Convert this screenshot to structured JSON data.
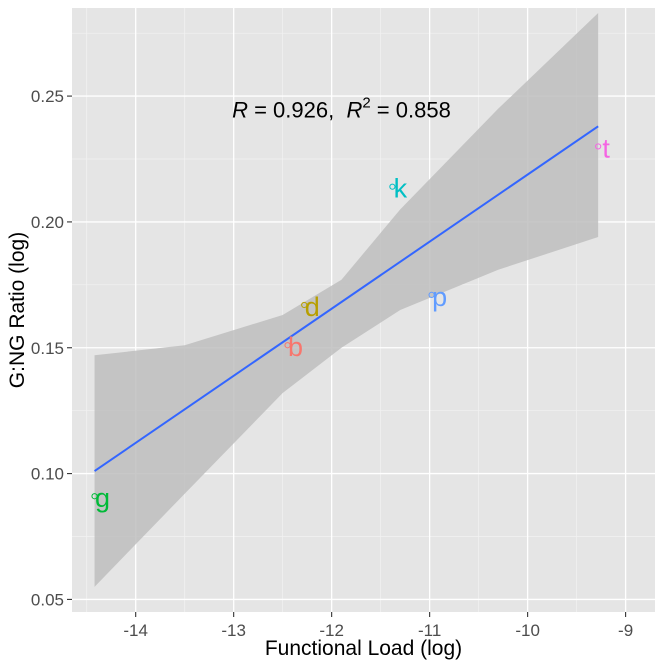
{
  "chart_data": {
    "type": "scatter",
    "xlabel": "Functional Load (log)",
    "ylabel": "G:NG Ratio (log)",
    "xlim": [
      -14.65,
      -8.7
    ],
    "ylim": [
      0.045,
      0.285
    ],
    "x_ticks": [
      -14,
      -13,
      -12,
      -11,
      -10,
      -9
    ],
    "y_ticks": [
      0.05,
      0.1,
      0.15,
      0.2,
      0.25
    ],
    "x_tick_labels": [
      "-14",
      "-13",
      "-12",
      "-11",
      "-10",
      "-9"
    ],
    "y_tick_labels": [
      "0.05",
      "0.10",
      "0.15",
      "0.20",
      "0.25"
    ],
    "grid": true,
    "annotation": {
      "r_symbol": "R",
      "r_equals": " = 0.926,  ",
      "r2_symbol": "R",
      "r2_superscript": "2",
      "r2_equals": " = 0.858",
      "x": -11.9,
      "y": 0.2415
    },
    "points": [
      {
        "label": "g",
        "x": -14.42,
        "y": 0.091,
        "color": "#00ba38"
      },
      {
        "label": "b",
        "x": -12.45,
        "y": 0.151,
        "color": "#f8766d"
      },
      {
        "label": "d",
        "x": -12.28,
        "y": 0.167,
        "color": "#b79f00"
      },
      {
        "label": "k",
        "x": -11.38,
        "y": 0.214,
        "color": "#00bfc4"
      },
      {
        "label": "p",
        "x": -10.98,
        "y": 0.171,
        "color": "#619cff"
      },
      {
        "label": "t",
        "x": -9.28,
        "y": 0.23,
        "color": "#f564e3"
      }
    ],
    "regression": {
      "color": "#3366ff",
      "x": [
        -14.42,
        -9.28
      ],
      "y": [
        0.101,
        0.238
      ],
      "ci_color": "#bebebe",
      "ci_x": [
        -14.42,
        -13.5,
        -12.5,
        -11.9,
        -11.3,
        -10.3,
        -9.28
      ],
      "ci_lower": [
        0.055,
        0.092,
        0.132,
        0.15,
        0.165,
        0.181,
        0.194
      ],
      "ci_upper": [
        0.147,
        0.151,
        0.163,
        0.177,
        0.205,
        0.245,
        0.283
      ]
    },
    "colors": {
      "panel": "#e5e5e5",
      "grid_major": "#ffffff",
      "grid_minor": "#f2f2f2"
    }
  }
}
